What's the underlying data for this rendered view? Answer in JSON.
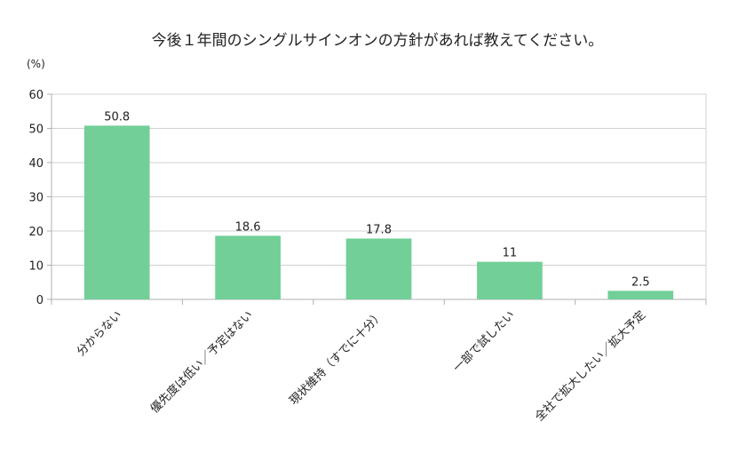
{
  "chart_data": {
    "type": "bar",
    "title": "今後１年間のシングルサインオンの方針があれば教えてください。",
    "ylabel": "(%)",
    "xlabel": "",
    "ylim": [
      0,
      60
    ],
    "yticks": [
      0,
      10,
      20,
      30,
      40,
      50,
      60
    ],
    "grid": true,
    "categories": [
      "分からない",
      "優先度は低い／予定はない",
      "現状維持（すでに十分）",
      "一部で試したい",
      "全社で拡大したい／拡大予定"
    ],
    "values": [
      50.8,
      18.6,
      17.8,
      11,
      2.5
    ],
    "value_labels": [
      "50.8",
      "18.6",
      "17.8",
      "11",
      "2.5"
    ],
    "ytick_labels": [
      "0",
      "10",
      "20",
      "30",
      "40",
      "50",
      "60"
    ],
    "bar_color": "#72cf98"
  }
}
